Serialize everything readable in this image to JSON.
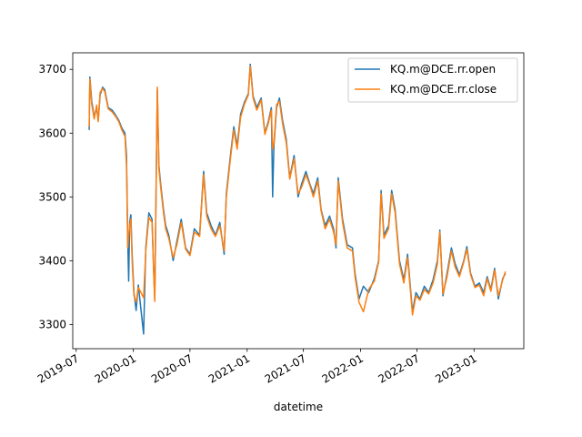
{
  "chart_data": {
    "type": "line",
    "title": "",
    "xlabel": "datetime",
    "ylabel": "",
    "x_axis": {
      "type": "date",
      "range": [
        "2019-06-20",
        "2023-06-10"
      ],
      "ticks": [
        "2019-07-01",
        "2020-01-01",
        "2020-07-01",
        "2021-01-01",
        "2021-07-01",
        "2022-01-01",
        "2022-07-01",
        "2023-01-01"
      ],
      "tick_labels": [
        "2019-07",
        "2020-01",
        "2020-07",
        "2021-01",
        "2021-07",
        "2022-01",
        "2022-07",
        "2023-01"
      ]
    },
    "y_axis": {
      "range": [
        3262,
        3726
      ],
      "ticks": [
        3300,
        3400,
        3500,
        3600,
        3700
      ],
      "tick_labels": [
        "3300",
        "3400",
        "3500",
        "3600",
        "3700"
      ]
    },
    "grid": false,
    "legend": {
      "position": "top-right",
      "entries": [
        "KQ.m@DCE.rr.open",
        "KQ.m@DCE.rr.close"
      ]
    },
    "series": [
      {
        "name": "KQ.m@DCE.rr.open",
        "color": "#1f77b4",
        "points": [
          [
            "2019-08-12",
            3605
          ],
          [
            "2019-08-14",
            3688
          ],
          [
            "2019-08-20",
            3650
          ],
          [
            "2019-08-28",
            3625
          ],
          [
            "2019-09-05",
            3640
          ],
          [
            "2019-09-10",
            3620
          ],
          [
            "2019-09-16",
            3660
          ],
          [
            "2019-09-24",
            3672
          ],
          [
            "2019-10-01",
            3668
          ],
          [
            "2019-10-12",
            3640
          ],
          [
            "2019-10-25",
            3636
          ],
          [
            "2019-11-05",
            3628
          ],
          [
            "2019-11-15",
            3620
          ],
          [
            "2019-11-25",
            3608
          ],
          [
            "2019-12-05",
            3600
          ],
          [
            "2019-12-10",
            3565
          ],
          [
            "2019-12-14",
            3430
          ],
          [
            "2019-12-17",
            3368
          ],
          [
            "2019-12-20",
            3460
          ],
          [
            "2019-12-24",
            3472
          ],
          [
            "2019-12-28",
            3410
          ],
          [
            "2020-01-03",
            3350
          ],
          [
            "2020-01-10",
            3322
          ],
          [
            "2020-01-17",
            3362
          ],
          [
            "2020-02-03",
            3285
          ],
          [
            "2020-02-10",
            3420
          ],
          [
            "2020-02-20",
            3475
          ],
          [
            "2020-03-01",
            3465
          ],
          [
            "2020-03-06",
            3390
          ],
          [
            "2020-03-10",
            3340
          ],
          [
            "2020-03-14",
            3510
          ],
          [
            "2020-03-18",
            3668
          ],
          [
            "2020-03-23",
            3550
          ],
          [
            "2020-03-29",
            3520
          ],
          [
            "2020-04-07",
            3480
          ],
          [
            "2020-04-14",
            3455
          ],
          [
            "2020-04-24",
            3440
          ],
          [
            "2020-05-08",
            3400
          ],
          [
            "2020-05-20",
            3430
          ],
          [
            "2020-06-03",
            3465
          ],
          [
            "2020-06-17",
            3420
          ],
          [
            "2020-07-01",
            3410
          ],
          [
            "2020-07-15",
            3450
          ],
          [
            "2020-08-01",
            3440
          ],
          [
            "2020-08-14",
            3540
          ],
          [
            "2020-08-24",
            3475
          ],
          [
            "2020-09-07",
            3455
          ],
          [
            "2020-09-21",
            3440
          ],
          [
            "2020-10-05",
            3460
          ],
          [
            "2020-10-19",
            3410
          ],
          [
            "2020-10-26",
            3505
          ],
          [
            "2020-11-07",
            3560
          ],
          [
            "2020-11-19",
            3610
          ],
          [
            "2020-11-30",
            3580
          ],
          [
            "2020-12-11",
            3630
          ],
          [
            "2020-12-23",
            3648
          ],
          [
            "2021-01-05",
            3662
          ],
          [
            "2021-01-11",
            3708
          ],
          [
            "2021-01-20",
            3658
          ],
          [
            "2021-02-01",
            3640
          ],
          [
            "2021-02-15",
            3655
          ],
          [
            "2021-02-27",
            3600
          ],
          [
            "2021-03-10",
            3618
          ],
          [
            "2021-03-20",
            3640
          ],
          [
            "2021-03-24",
            3500
          ],
          [
            "2021-03-28",
            3580
          ],
          [
            "2021-04-06",
            3640
          ],
          [
            "2021-04-15",
            3655
          ],
          [
            "2021-04-25",
            3620
          ],
          [
            "2021-05-07",
            3590
          ],
          [
            "2021-05-18",
            3530
          ],
          [
            "2021-06-01",
            3565
          ],
          [
            "2021-06-14",
            3500
          ],
          [
            "2021-06-25",
            3520
          ],
          [
            "2021-07-09",
            3540
          ],
          [
            "2021-07-22",
            3520
          ],
          [
            "2021-08-02",
            3505
          ],
          [
            "2021-08-16",
            3530
          ],
          [
            "2021-08-27",
            3480
          ],
          [
            "2021-09-09",
            3455
          ],
          [
            "2021-09-23",
            3470
          ],
          [
            "2021-10-06",
            3450
          ],
          [
            "2021-10-14",
            3420
          ],
          [
            "2021-10-21",
            3530
          ],
          [
            "2021-11-04",
            3465
          ],
          [
            "2021-11-19",
            3425
          ],
          [
            "2021-12-06",
            3420
          ],
          [
            "2021-12-14",
            3380
          ],
          [
            "2021-12-27",
            3340
          ],
          [
            "2022-01-10",
            3360
          ],
          [
            "2022-01-27",
            3350
          ],
          [
            "2022-02-14",
            3372
          ],
          [
            "2022-02-28",
            3400
          ],
          [
            "2022-03-08",
            3510
          ],
          [
            "2022-03-17",
            3440
          ],
          [
            "2022-04-01",
            3455
          ],
          [
            "2022-04-11",
            3510
          ],
          [
            "2022-04-22",
            3480
          ],
          [
            "2022-05-06",
            3400
          ],
          [
            "2022-05-20",
            3370
          ],
          [
            "2022-06-01",
            3410
          ],
          [
            "2022-06-17",
            3320
          ],
          [
            "2022-06-28",
            3350
          ],
          [
            "2022-07-11",
            3340
          ],
          [
            "2022-07-25",
            3360
          ],
          [
            "2022-08-08",
            3350
          ],
          [
            "2022-08-22",
            3370
          ],
          [
            "2022-09-05",
            3400
          ],
          [
            "2022-09-13",
            3448
          ],
          [
            "2022-09-23",
            3345
          ],
          [
            "2022-10-06",
            3380
          ],
          [
            "2022-10-20",
            3420
          ],
          [
            "2022-11-01",
            3395
          ],
          [
            "2022-11-15",
            3378
          ],
          [
            "2022-11-29",
            3400
          ],
          [
            "2022-12-09",
            3422
          ],
          [
            "2022-12-21",
            3380
          ],
          [
            "2023-01-04",
            3360
          ],
          [
            "2023-01-18",
            3365
          ],
          [
            "2023-02-01",
            3350
          ],
          [
            "2023-02-12",
            3375
          ],
          [
            "2023-02-24",
            3355
          ],
          [
            "2023-03-08",
            3388
          ],
          [
            "2023-03-20",
            3340
          ],
          [
            "2023-04-03",
            3372
          ],
          [
            "2023-04-12",
            3380
          ]
        ]
      },
      {
        "name": "KQ.m@DCE.rr.close",
        "color": "#ff7f0e",
        "points": [
          [
            "2019-08-12",
            3610
          ],
          [
            "2019-08-14",
            3685
          ],
          [
            "2019-08-20",
            3645
          ],
          [
            "2019-08-28",
            3622
          ],
          [
            "2019-09-05",
            3644
          ],
          [
            "2019-09-10",
            3618
          ],
          [
            "2019-09-16",
            3664
          ],
          [
            "2019-09-24",
            3670
          ],
          [
            "2019-10-01",
            3665
          ],
          [
            "2019-10-12",
            3638
          ],
          [
            "2019-10-25",
            3633
          ],
          [
            "2019-11-05",
            3626
          ],
          [
            "2019-11-15",
            3618
          ],
          [
            "2019-11-25",
            3605
          ],
          [
            "2019-12-05",
            3595
          ],
          [
            "2019-12-10",
            3550
          ],
          [
            "2019-12-14",
            3420
          ],
          [
            "2019-12-17",
            3440
          ],
          [
            "2019-12-20",
            3455
          ],
          [
            "2019-12-24",
            3465
          ],
          [
            "2019-12-28",
            3400
          ],
          [
            "2020-01-03",
            3345
          ],
          [
            "2020-01-10",
            3335
          ],
          [
            "2020-01-17",
            3358
          ],
          [
            "2020-02-03",
            3342
          ],
          [
            "2020-02-10",
            3415
          ],
          [
            "2020-02-20",
            3468
          ],
          [
            "2020-03-01",
            3460
          ],
          [
            "2020-03-06",
            3385
          ],
          [
            "2020-03-10",
            3336
          ],
          [
            "2020-03-14",
            3500
          ],
          [
            "2020-03-18",
            3672
          ],
          [
            "2020-03-23",
            3545
          ],
          [
            "2020-03-29",
            3515
          ],
          [
            "2020-04-07",
            3475
          ],
          [
            "2020-04-14",
            3450
          ],
          [
            "2020-04-24",
            3435
          ],
          [
            "2020-05-08",
            3405
          ],
          [
            "2020-05-20",
            3425
          ],
          [
            "2020-06-03",
            3460
          ],
          [
            "2020-06-17",
            3418
          ],
          [
            "2020-07-01",
            3408
          ],
          [
            "2020-07-15",
            3445
          ],
          [
            "2020-08-01",
            3438
          ],
          [
            "2020-08-14",
            3535
          ],
          [
            "2020-08-24",
            3470
          ],
          [
            "2020-09-07",
            3450
          ],
          [
            "2020-09-21",
            3438
          ],
          [
            "2020-10-05",
            3455
          ],
          [
            "2020-10-19",
            3415
          ],
          [
            "2020-10-26",
            3500
          ],
          [
            "2020-11-07",
            3555
          ],
          [
            "2020-11-19",
            3605
          ],
          [
            "2020-11-30",
            3575
          ],
          [
            "2020-12-11",
            3625
          ],
          [
            "2020-12-23",
            3645
          ],
          [
            "2021-01-05",
            3660
          ],
          [
            "2021-01-11",
            3705
          ],
          [
            "2021-01-20",
            3655
          ],
          [
            "2021-02-01",
            3636
          ],
          [
            "2021-02-15",
            3652
          ],
          [
            "2021-02-27",
            3598
          ],
          [
            "2021-03-10",
            3615
          ],
          [
            "2021-03-20",
            3636
          ],
          [
            "2021-03-24",
            3575
          ],
          [
            "2021-03-28",
            3585
          ],
          [
            "2021-04-06",
            3645
          ],
          [
            "2021-04-15",
            3650
          ],
          [
            "2021-04-25",
            3615
          ],
          [
            "2021-05-07",
            3585
          ],
          [
            "2021-05-18",
            3528
          ],
          [
            "2021-06-01",
            3560
          ],
          [
            "2021-06-14",
            3505
          ],
          [
            "2021-06-25",
            3515
          ],
          [
            "2021-07-09",
            3535
          ],
          [
            "2021-07-22",
            3518
          ],
          [
            "2021-08-02",
            3500
          ],
          [
            "2021-08-16",
            3525
          ],
          [
            "2021-08-27",
            3478
          ],
          [
            "2021-09-09",
            3450
          ],
          [
            "2021-09-23",
            3465
          ],
          [
            "2021-10-06",
            3445
          ],
          [
            "2021-10-14",
            3425
          ],
          [
            "2021-10-21",
            3525
          ],
          [
            "2021-11-04",
            3460
          ],
          [
            "2021-11-19",
            3420
          ],
          [
            "2021-12-06",
            3415
          ],
          [
            "2021-12-14",
            3375
          ],
          [
            "2021-12-27",
            3335
          ],
          [
            "2022-01-10",
            3320
          ],
          [
            "2022-01-27",
            3355
          ],
          [
            "2022-02-14",
            3368
          ],
          [
            "2022-02-28",
            3398
          ],
          [
            "2022-03-08",
            3505
          ],
          [
            "2022-03-17",
            3435
          ],
          [
            "2022-04-01",
            3450
          ],
          [
            "2022-04-11",
            3505
          ],
          [
            "2022-04-22",
            3475
          ],
          [
            "2022-05-06",
            3395
          ],
          [
            "2022-05-20",
            3365
          ],
          [
            "2022-06-01",
            3405
          ],
          [
            "2022-06-17",
            3315
          ],
          [
            "2022-06-28",
            3345
          ],
          [
            "2022-07-11",
            3338
          ],
          [
            "2022-07-25",
            3355
          ],
          [
            "2022-08-08",
            3348
          ],
          [
            "2022-08-22",
            3365
          ],
          [
            "2022-09-05",
            3395
          ],
          [
            "2022-09-13",
            3445
          ],
          [
            "2022-09-23",
            3348
          ],
          [
            "2022-10-06",
            3375
          ],
          [
            "2022-10-20",
            3415
          ],
          [
            "2022-11-01",
            3390
          ],
          [
            "2022-11-15",
            3375
          ],
          [
            "2022-11-29",
            3398
          ],
          [
            "2022-12-09",
            3418
          ],
          [
            "2022-12-21",
            3378
          ],
          [
            "2023-01-04",
            3358
          ],
          [
            "2023-01-18",
            3362
          ],
          [
            "2023-02-01",
            3345
          ],
          [
            "2023-02-12",
            3372
          ],
          [
            "2023-02-24",
            3352
          ],
          [
            "2023-03-08",
            3385
          ],
          [
            "2023-03-20",
            3345
          ],
          [
            "2023-04-03",
            3370
          ],
          [
            "2023-04-12",
            3383
          ]
        ]
      }
    ]
  }
}
